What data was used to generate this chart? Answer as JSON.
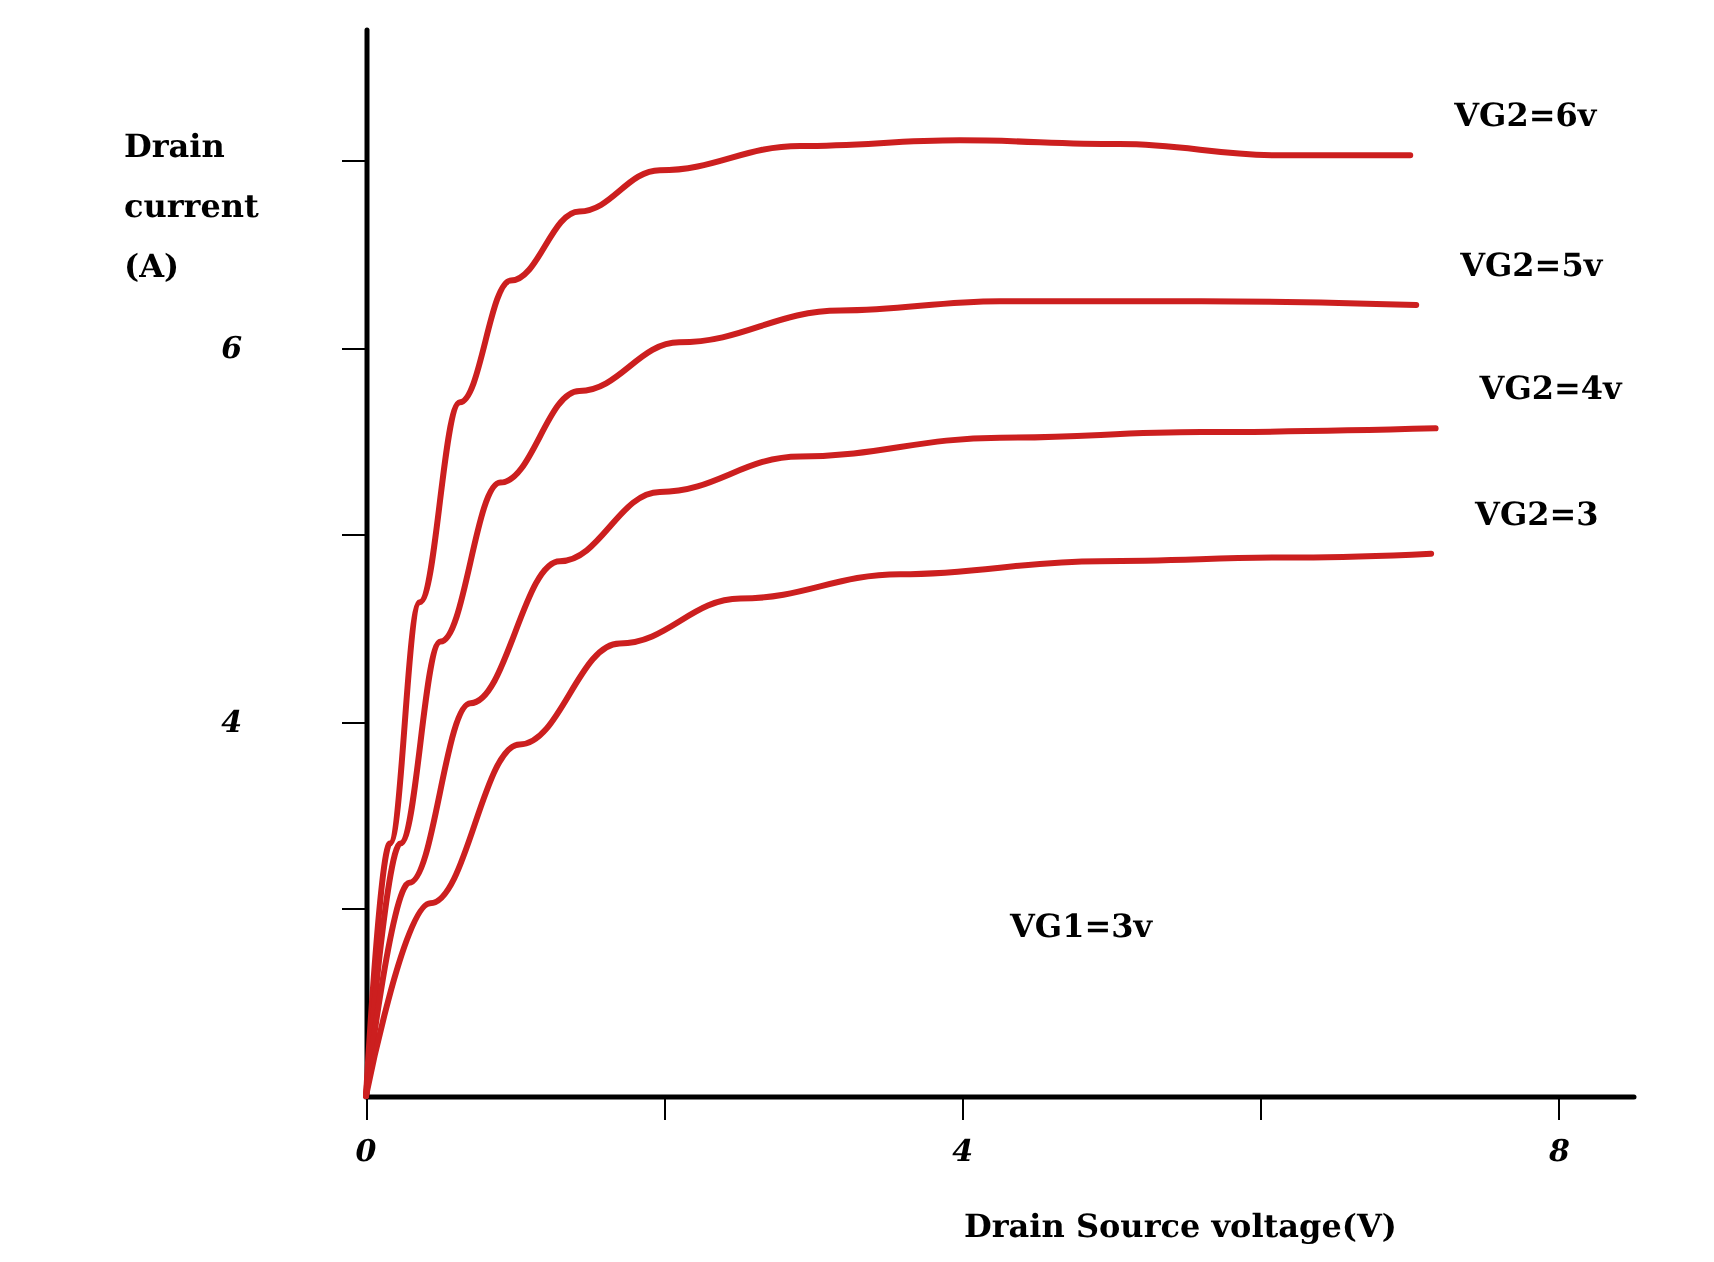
{
  "chart_data": {
    "type": "line",
    "xlabel": "Drain Source voltage(V)",
    "ylabel": "Drain current (A)",
    "xlim": [
      0,
      8.5
    ],
    "xticks": [
      0,
      {
        "value": 2,
        "label": null
      },
      4,
      {
        "value": 6,
        "label": null
      },
      8
    ],
    "ylim": [
      2,
      7.7
    ],
    "yticks": [
      {
        "value": 3,
        "label": null
      },
      4,
      {
        "value": 5,
        "label": null
      },
      6,
      {
        "value": 7,
        "label": null
      }
    ],
    "grid": false,
    "legend": false,
    "marker": "none",
    "line_style": "solid",
    "series": [
      {
        "name": "VG2=6v",
        "color": "#cc1f1f",
        "x": [
          0,
          0.16,
          0.36,
          0.63,
          0.97,
          1.43,
          1.97,
          2.91,
          3.98,
          5.05,
          6.13,
          7.0
        ],
        "values": [
          2,
          3.35,
          4.64,
          5.71,
          6.36,
          6.73,
          6.95,
          7.08,
          7.11,
          7.09,
          7.03,
          7.03
        ]
      },
      {
        "name": "VG2=5v",
        "color": "#cc1f1f",
        "x": [
          0,
          0.23,
          0.5,
          0.9,
          1.43,
          2.1,
          3.18,
          4.25,
          5.6,
          7.04
        ],
        "values": [
          2,
          3.35,
          4.43,
          5.28,
          5.77,
          6.03,
          6.2,
          6.25,
          6.25,
          6.23
        ]
      },
      {
        "name": "VG2=4v",
        "color": "#cc1f1f",
        "x": [
          0,
          0.29,
          0.7,
          1.3,
          1.97,
          2.91,
          4.25,
          5.6,
          7.17
        ],
        "values": [
          2,
          3.14,
          4.1,
          4.86,
          5.23,
          5.42,
          5.52,
          5.55,
          5.57
        ]
      },
      {
        "name": "VG2=3",
        "color": "#cc1f1f",
        "x": [
          0,
          0.43,
          1.03,
          1.7,
          2.51,
          3.58,
          4.92,
          6.26,
          7.14
        ],
        "values": [
          2,
          3.03,
          3.88,
          4.42,
          4.66,
          4.79,
          4.86,
          4.88,
          4.9
        ]
      }
    ],
    "annotations": [
      "VG1=3v"
    ]
  }
}
